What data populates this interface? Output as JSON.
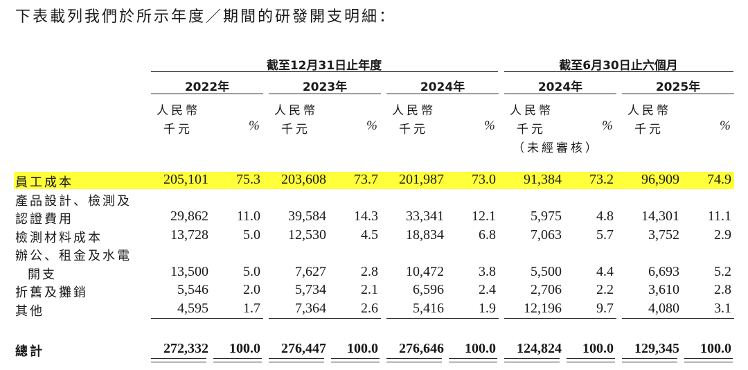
{
  "intro": "下表載列我們於所示年度／期間的研發開支明細：",
  "groups": {
    "year_end": "截至12月31日止年度",
    "six_months": "截至6月30日止六個月"
  },
  "years": [
    "2022年",
    "2023年",
    "2024年",
    "2024年",
    "2025年"
  ],
  "unit_currency": "人民幣",
  "unit_thousand": "千元",
  "pct_symbol": "%",
  "unaudited": "（未經審核）",
  "rows": [
    {
      "label": [
        "員工成本"
      ],
      "values": [
        "205,101",
        "75.3",
        "203,608",
        "73.7",
        "201,987",
        "73.0",
        "91,384",
        "73.2",
        "96,909",
        "74.9"
      ]
    },
    {
      "label": [
        "產品設計、檢測及",
        "認證費用"
      ],
      "values": [
        "29,862",
        "11.0",
        "39,584",
        "14.3",
        "33,341",
        "12.1",
        "5,975",
        "4.8",
        "14,301",
        "11.1"
      ]
    },
    {
      "label": [
        "檢測材料成本"
      ],
      "values": [
        "13,728",
        "5.0",
        "12,530",
        "4.5",
        "18,834",
        "6.8",
        "7,063",
        "5.7",
        "3,752",
        "2.9"
      ]
    },
    {
      "label": [
        "辦公、租金及水電",
        "開支"
      ],
      "values": [
        "13,500",
        "5.0",
        "7,627",
        "2.8",
        "10,472",
        "3.8",
        "5,500",
        "4.4",
        "6,693",
        "5.2"
      ]
    },
    {
      "label": [
        "折舊及攤銷"
      ],
      "values": [
        "5,546",
        "2.0",
        "5,734",
        "2.1",
        "6,596",
        "2.4",
        "2,706",
        "2.2",
        "3,610",
        "2.8"
      ]
    },
    {
      "label": [
        "其他"
      ],
      "values": [
        "4,595",
        "1.7",
        "7,364",
        "2.6",
        "5,416",
        "1.9",
        "12,196",
        "9.7",
        "4,080",
        "3.1"
      ]
    }
  ],
  "total": {
    "label": "總計",
    "values": [
      "272,332",
      "100.0",
      "276,447",
      "100.0",
      "276,646",
      "100.0",
      "124,824",
      "100.0",
      "129,345",
      "100.0"
    ]
  },
  "highlight_color": "#ffff3a"
}
